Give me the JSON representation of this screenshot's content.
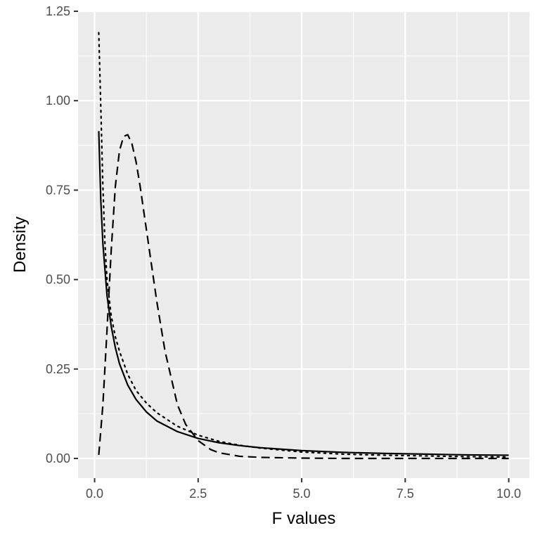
{
  "chart_data": {
    "type": "line",
    "title": "",
    "xlabel": "F values",
    "ylabel": "Density",
    "xlim": [
      -0.4,
      10.5
    ],
    "ylim": [
      -0.055,
      1.25
    ],
    "x_ticks": [
      0.0,
      2.5,
      5.0,
      7.5,
      10.0
    ],
    "x_tick_labels": [
      "0.0",
      "2.5",
      "5.0",
      "7.5",
      "10.0"
    ],
    "y_ticks": [
      0.0,
      0.25,
      0.5,
      0.75,
      1.0,
      1.25
    ],
    "y_tick_labels": [
      "0.00",
      "0.25",
      "0.50",
      "0.75",
      "1.00",
      "1.25"
    ],
    "grid": true,
    "legend": "none",
    "colors": {
      "panel_background": "#ebebeb",
      "grid": "#ffffff",
      "line": "#000000",
      "tick_text": "#4d4d4d"
    },
    "series": [
      {
        "linetype": "solid",
        "x": [
          0.1,
          0.15,
          0.2,
          0.3,
          0.4,
          0.5,
          0.6,
          0.8,
          1.0,
          1.25,
          1.5,
          2.0,
          2.5,
          3.0,
          3.5,
          4.0,
          5.0,
          6.0,
          7.0,
          8.0,
          9.0,
          10.0
        ],
        "y": [
          0.915,
          0.72,
          0.6,
          0.455,
          0.37,
          0.31,
          0.265,
          0.205,
          0.165,
          0.13,
          0.105,
          0.075,
          0.056,
          0.044,
          0.036,
          0.03,
          0.022,
          0.017,
          0.014,
          0.012,
          0.01,
          0.009
        ]
      },
      {
        "linetype": "dotted",
        "x": [
          0.1,
          0.15,
          0.2,
          0.25,
          0.3,
          0.4,
          0.5,
          0.6,
          0.8,
          1.0,
          1.25,
          1.5,
          2.0,
          2.5,
          3.0,
          3.5,
          4.0,
          5.0,
          6.0,
          7.0,
          8.0,
          9.0,
          10.0
        ],
        "y": [
          1.19,
          0.98,
          0.76,
          0.6,
          0.5,
          0.4,
          0.34,
          0.3,
          0.235,
          0.19,
          0.155,
          0.128,
          0.09,
          0.065,
          0.048,
          0.037,
          0.029,
          0.018,
          0.012,
          0.009,
          0.007,
          0.005,
          0.004
        ]
      },
      {
        "linetype": "dashed",
        "x": [
          0.1,
          0.2,
          0.3,
          0.4,
          0.5,
          0.6,
          0.7,
          0.8,
          0.9,
          1.0,
          1.1,
          1.2,
          1.3,
          1.5,
          1.7,
          2.0,
          2.2,
          2.5,
          2.8,
          3.0,
          3.5,
          4.0,
          5.0,
          6.0,
          7.0,
          8.0,
          9.0,
          10.0
        ],
        "y": [
          0.01,
          0.15,
          0.36,
          0.58,
          0.76,
          0.86,
          0.9,
          0.905,
          0.88,
          0.83,
          0.76,
          0.68,
          0.6,
          0.44,
          0.3,
          0.15,
          0.095,
          0.05,
          0.025,
          0.016,
          0.006,
          0.003,
          0.001,
          0.0,
          0.0,
          0.0,
          0.0,
          0.0
        ]
      }
    ]
  }
}
